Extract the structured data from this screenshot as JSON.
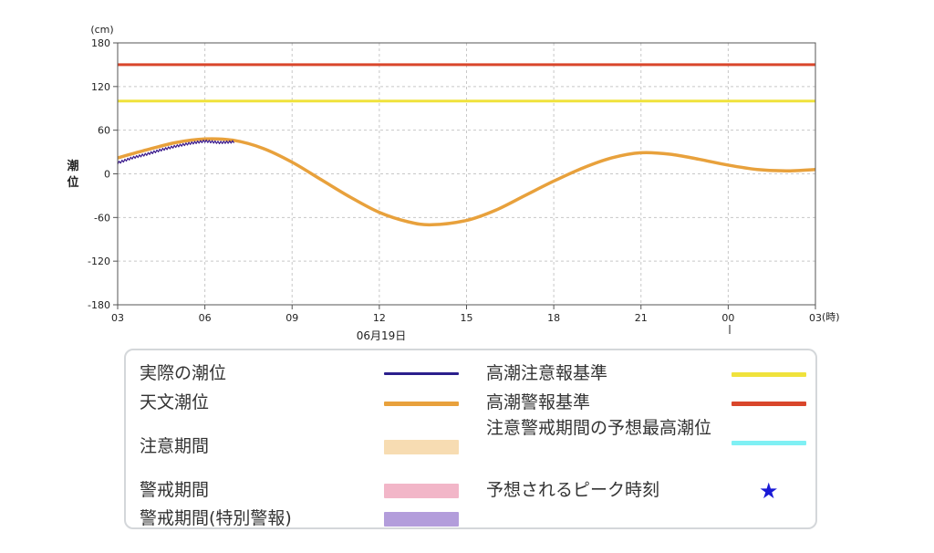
{
  "chart_data": {
    "type": "line",
    "unit_label": "(cm)",
    "ylabel": "潮位",
    "xlabel_unit": "(時)",
    "date_label": "06月19日",
    "ylim": [
      -180,
      180
    ],
    "y_ticks": [
      "180",
      "120",
      "60",
      "0",
      "-60",
      "-120",
      "-180"
    ],
    "x_ticks": [
      "03",
      "06",
      "09",
      "12",
      "15",
      "18",
      "21",
      "00",
      "03"
    ],
    "x_range_hours": [
      3,
      27
    ],
    "grid": true,
    "series": [
      {
        "name": "天文潮位",
        "color": "#e8a13c",
        "x": [
          3,
          4,
          5,
          6,
          7,
          8,
          9,
          10,
          11,
          12,
          13,
          13.8,
          15,
          16,
          17,
          18,
          19,
          20,
          21,
          22,
          23,
          24,
          25,
          26,
          27
        ],
        "y": [
          22,
          33,
          43,
          48,
          46,
          35,
          16,
          -8,
          -32,
          -53,
          -66,
          -70,
          -64,
          -50,
          -30,
          -10,
          8,
          22,
          29,
          27,
          20,
          12,
          6,
          4,
          6
        ]
      },
      {
        "name": "実際の潮位",
        "color": "#3a1a8c",
        "x": [
          3,
          3.5,
          4,
          4.5,
          5,
          5.5,
          6,
          6.5,
          7
        ],
        "y": [
          15,
          22,
          27,
          33,
          38,
          42,
          45,
          43,
          44
        ]
      },
      {
        "name": "高潮注意報基準",
        "color": "#f0e23c",
        "x": [
          3,
          27
        ],
        "y": [
          100,
          100
        ]
      },
      {
        "name": "高潮警報基準",
        "color": "#d9462b",
        "x": [
          3,
          27
        ],
        "y": [
          150,
          150
        ]
      }
    ]
  },
  "legend": [
    {
      "label": "実際の潮位",
      "color": "#2b1f8c",
      "kind": "line"
    },
    {
      "label": "天文潮位",
      "color": "#e8a13c",
      "kind": "line"
    },
    {
      "label": "注意期間",
      "color": "#f7dcb2",
      "kind": "band"
    },
    {
      "label": "警戒期間",
      "color": "#f2b6c8",
      "kind": "band"
    },
    {
      "label": "警戒期間(特別警報)",
      "color": "#b39ddb",
      "kind": "band"
    },
    {
      "label": "高潮注意報基準",
      "color": "#f0e23c",
      "kind": "line"
    },
    {
      "label": "高潮警報基準",
      "color": "#d9462b",
      "kind": "line"
    },
    {
      "label": "注意警戒期間の予想最高潮位",
      "color": "#7ff0f4",
      "kind": "line"
    },
    {
      "label": "予想されるピーク時刻",
      "color": "#1a1ad6",
      "kind": "star",
      "icon": "star-icon"
    }
  ]
}
